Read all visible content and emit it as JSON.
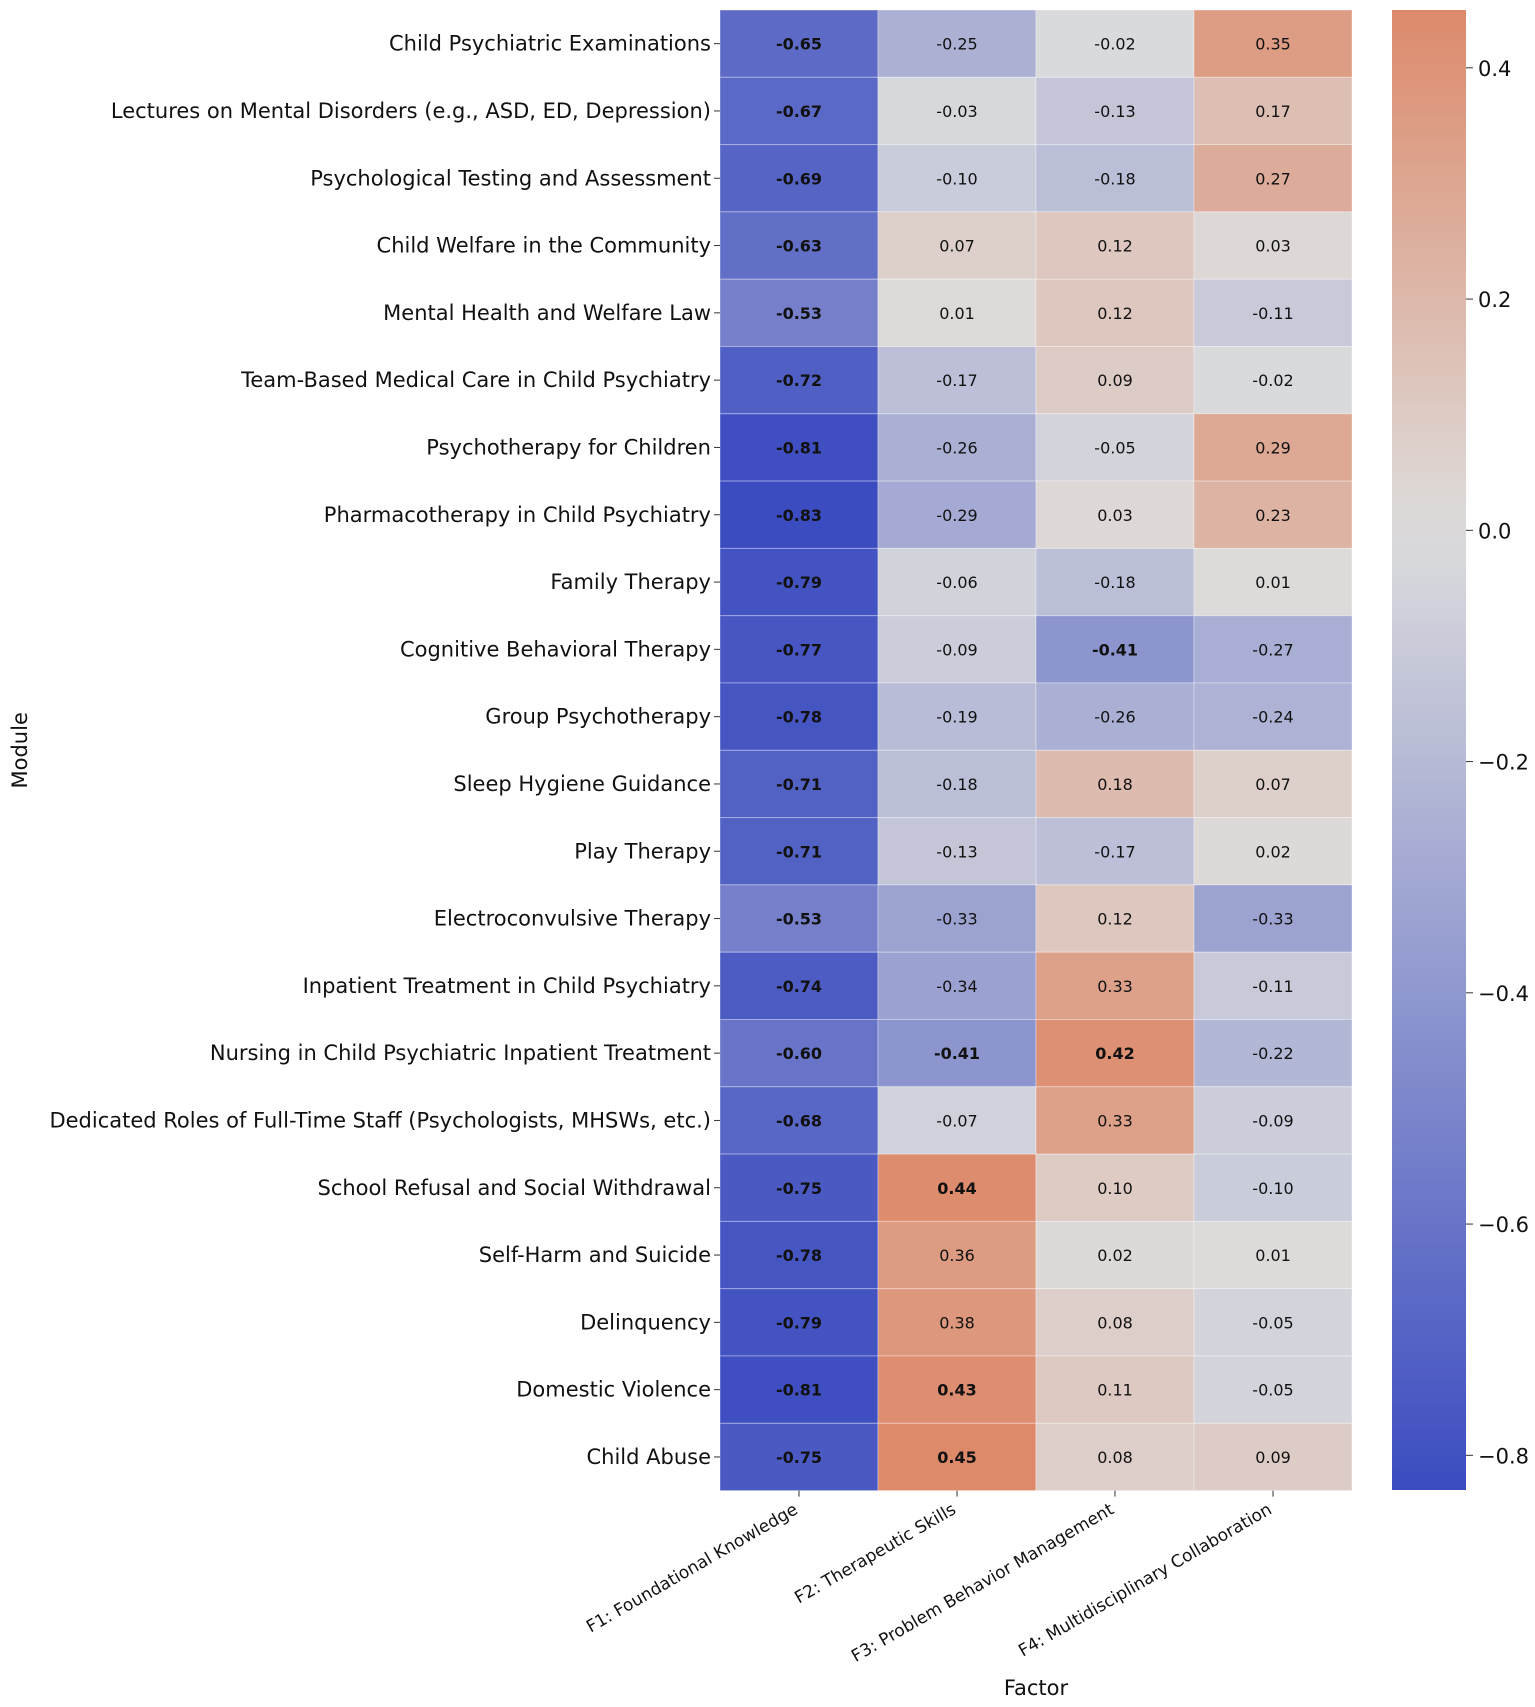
{
  "chart_data": {
    "type": "heatmap",
    "xlabel": "Factor",
    "ylabel": "Module",
    "columns": [
      "F1: Foundational Knowledge",
      "F2: Therapeutic Skills",
      "F3: Problem Behavior Management",
      "F4: Multidisciplinary Collaboration"
    ],
    "rows": [
      "Child Psychiatric Examinations",
      "Lectures on Mental Disorders (e.g., ASD, ED, Depression)",
      "Psychological Testing and Assessment",
      "Child Welfare in the Community",
      "Mental Health and Welfare Law",
      "Team-Based Medical Care in Child Psychiatry",
      "Psychotherapy for Children",
      "Pharmacotherapy in Child Psychiatry",
      "Family Therapy",
      "Cognitive Behavioral Therapy",
      "Group Psychotherapy",
      "Sleep Hygiene Guidance",
      "Play Therapy",
      "Electroconvulsive Therapy",
      "Inpatient Treatment in Child Psychiatry",
      "Nursing in Child Psychiatric Inpatient Treatment",
      "Dedicated Roles of Full-Time Staff (Psychologists, MHSWs, etc.)",
      "School Refusal and Social Withdrawal",
      "Self-Harm and Suicide",
      "Delinquency",
      "Domestic Violence",
      "Child Abuse"
    ],
    "values": [
      [
        -0.65,
        -0.25,
        -0.02,
        0.35
      ],
      [
        -0.67,
        -0.03,
        -0.13,
        0.17
      ],
      [
        -0.69,
        -0.1,
        -0.18,
        0.27
      ],
      [
        -0.63,
        0.07,
        0.12,
        0.03
      ],
      [
        -0.53,
        0.01,
        0.12,
        -0.11
      ],
      [
        -0.72,
        -0.17,
        0.09,
        -0.02
      ],
      [
        -0.81,
        -0.26,
        -0.05,
        0.29
      ],
      [
        -0.83,
        -0.29,
        0.03,
        0.23
      ],
      [
        -0.79,
        -0.06,
        -0.18,
        0.01
      ],
      [
        -0.77,
        -0.09,
        -0.41,
        -0.27
      ],
      [
        -0.78,
        -0.19,
        -0.26,
        -0.24
      ],
      [
        -0.71,
        -0.18,
        0.18,
        0.07
      ],
      [
        -0.71,
        -0.13,
        -0.17,
        0.02
      ],
      [
        -0.53,
        -0.33,
        0.12,
        -0.33
      ],
      [
        -0.74,
        -0.34,
        0.33,
        -0.11
      ],
      [
        -0.6,
        -0.41,
        0.42,
        -0.22
      ],
      [
        -0.68,
        -0.07,
        0.33,
        -0.09
      ],
      [
        -0.75,
        0.44,
        0.1,
        -0.1
      ],
      [
        -0.78,
        0.36,
        0.02,
        0.01
      ],
      [
        -0.79,
        0.38,
        0.08,
        -0.05
      ],
      [
        -0.81,
        0.43,
        0.11,
        -0.05
      ],
      [
        -0.75,
        0.45,
        0.08,
        0.09
      ]
    ],
    "bold_threshold": 0.4,
    "colormap": "coolwarm",
    "vmin": -0.83,
    "vmax": 0.45,
    "colorbar_ticks": [
      0.4,
      0.2,
      0.0,
      -0.2,
      -0.4,
      -0.6,
      -0.8
    ],
    "colorbar_tick_labels": [
      "0.4",
      "0.2",
      "0.0",
      "−0.2",
      "−0.4",
      "−0.6",
      "−0.8"
    ],
    "colors": {
      "cold": "#3b4cc0",
      "neutral": "#dddddd",
      "warm": "#dd8a6b"
    }
  }
}
